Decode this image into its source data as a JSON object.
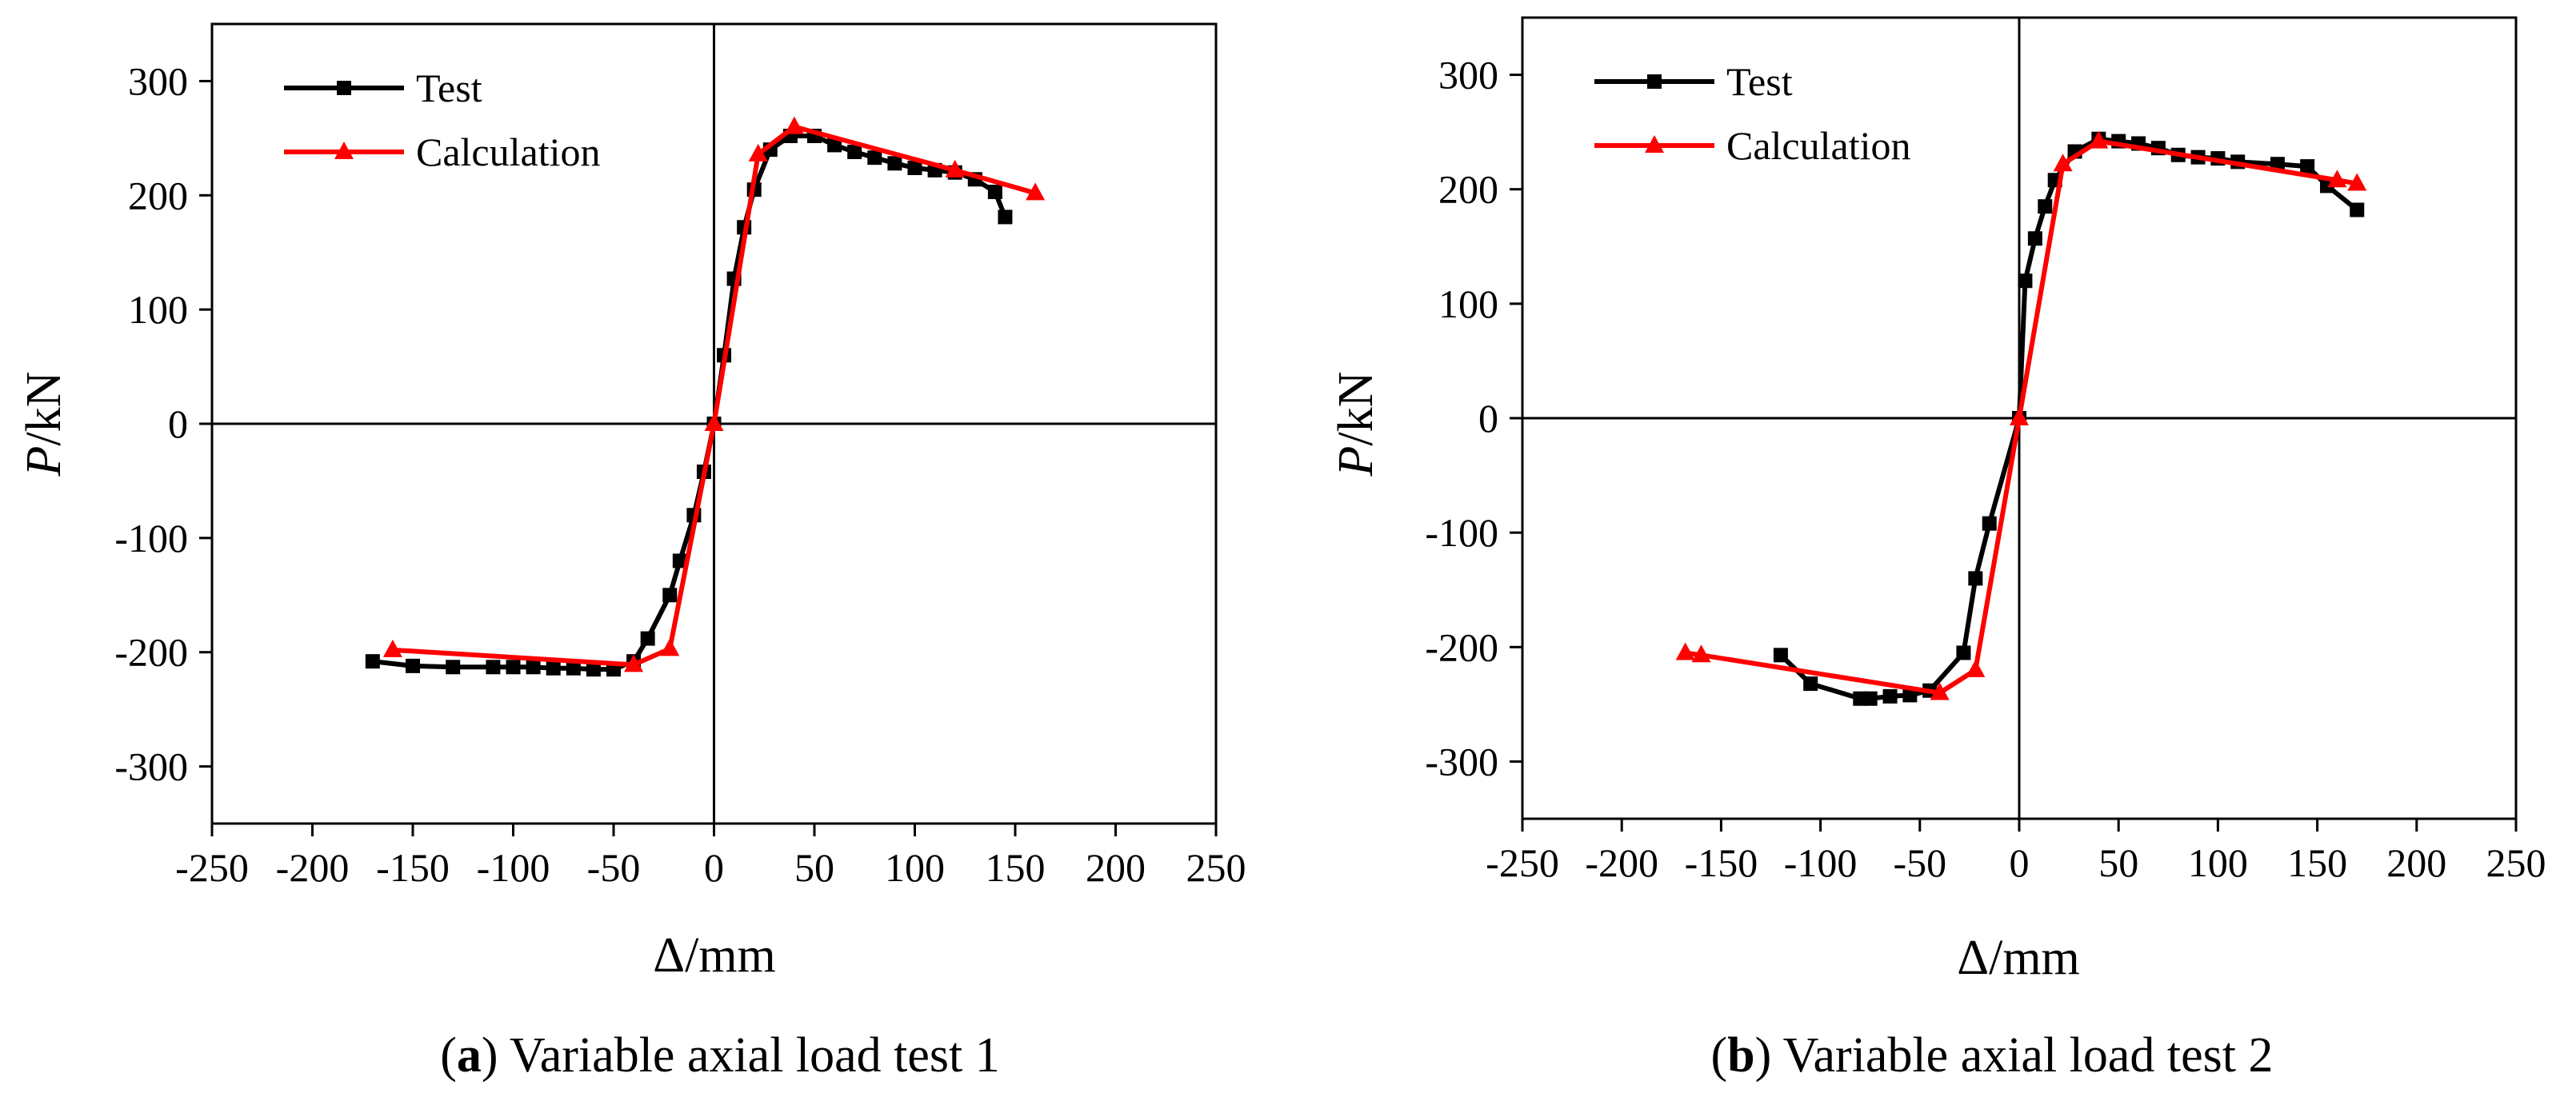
{
  "colors": {
    "test": "#000000",
    "calculation": "#ff0000",
    "axes": "#000000"
  },
  "chart_data": [
    {
      "type": "line",
      "caption_letter": "a",
      "caption_text": ") Variable axial load test 1",
      "caption_open": "(",
      "xlabel": "Δ/mm",
      "ylabel_italic": "P",
      "ylabel_rest": "/kN",
      "xlim": [
        -250,
        250
      ],
      "ylim": [
        -350,
        350
      ],
      "xticks": [
        -250,
        -200,
        -150,
        -100,
        -50,
        0,
        50,
        100,
        150,
        200,
        250
      ],
      "yticks": [
        -300,
        -200,
        -100,
        0,
        100,
        200,
        300
      ],
      "xtick_labels": [
        "-250",
        "-200",
        "-150",
        "-100",
        "-50",
        "0",
        "50",
        "100",
        "150",
        "200",
        "250"
      ],
      "ytick_labels": [
        "-300",
        "-200",
        "-100",
        "0",
        "100",
        "200",
        "300"
      ],
      "legend": [
        "Test",
        "Calculation"
      ],
      "series": [
        {
          "name": "Test",
          "marker": "square",
          "color": "#000000",
          "x": [
            -170,
            -150,
            -130,
            -110,
            -100,
            -90,
            -80,
            -70,
            -60,
            -50,
            -40,
            -33,
            -22,
            -17,
            -10,
            -5,
            0,
            5,
            10,
            15,
            20,
            28,
            38,
            50,
            60,
            70,
            80,
            90,
            100,
            110,
            120,
            130,
            140,
            145
          ],
          "y": [
            -208,
            -212,
            -213,
            -213,
            -213,
            -213,
            -214,
            -214,
            -215,
            -215,
            -208,
            -188,
            -150,
            -120,
            -80,
            -42,
            0,
            60,
            127,
            172,
            205,
            240,
            252,
            252,
            244,
            238,
            233,
            228,
            224,
            222,
            220,
            214,
            203,
            181
          ]
        },
        {
          "name": "Calculation",
          "marker": "triangle",
          "color": "#ff0000",
          "x": [
            -160,
            -40,
            -22,
            0,
            22,
            40,
            120,
            160
          ],
          "y": [
            -198,
            -211,
            -197,
            0,
            236,
            260,
            222,
            202
          ]
        }
      ]
    },
    {
      "type": "line",
      "caption_letter": "b",
      "caption_text": ") Variable axial load test 2",
      "caption_open": "(",
      "xlabel": "Δ/mm",
      "ylabel_italic": "P",
      "ylabel_rest": "/kN",
      "xlim": [
        -250,
        250
      ],
      "ylim": [
        -350,
        350
      ],
      "xticks": [
        -250,
        -200,
        -150,
        -100,
        -50,
        0,
        50,
        100,
        150,
        200,
        250
      ],
      "yticks": [
        -300,
        -200,
        -100,
        0,
        100,
        200,
        300
      ],
      "xtick_labels": [
        "-250",
        "-200",
        "-150",
        "-100",
        "-50",
        "0",
        "50",
        "100",
        "150",
        "200",
        "250"
      ],
      "ytick_labels": [
        "-300",
        "-200",
        "-100",
        "0",
        "100",
        "200",
        "300"
      ],
      "legend": [
        "Test",
        "Calculation"
      ],
      "series": [
        {
          "name": "Test",
          "marker": "square",
          "color": "#000000",
          "x": [
            -120,
            -105,
            -80,
            -75,
            -65,
            -55,
            -45,
            -28,
            -22,
            -15,
            0,
            3,
            8,
            13,
            18,
            28,
            40,
            50,
            60,
            70,
            80,
            90,
            100,
            110,
            130,
            145,
            155,
            170
          ],
          "y": [
            -207,
            -232,
            -245,
            -245,
            -243,
            -242,
            -238,
            -205,
            -140,
            -92,
            0,
            120,
            157,
            185,
            208,
            233,
            244,
            242,
            240,
            236,
            230,
            228,
            227,
            224,
            222,
            220,
            203,
            182
          ]
        },
        {
          "name": "Calculation",
          "marker": "triangle",
          "color": "#ff0000",
          "x": [
            -168,
            -160,
            -40,
            -22,
            0,
            22,
            40,
            160,
            170
          ],
          "y": [
            -205,
            -207,
            -240,
            -220,
            0,
            222,
            242,
            208,
            205
          ]
        }
      ]
    }
  ]
}
